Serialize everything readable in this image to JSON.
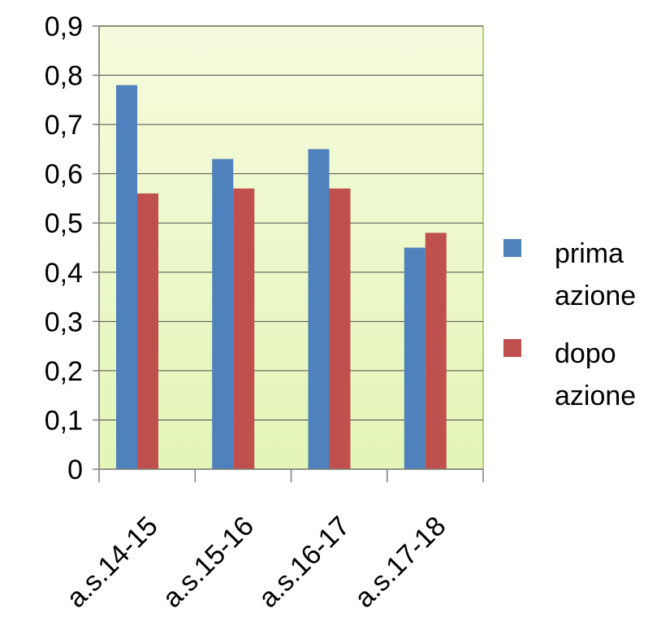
{
  "chart_data": {
    "type": "bar",
    "categories": [
      "a.s.14-15",
      "a.s.15-16",
      "a.s.16-17",
      "a.s.17-18"
    ],
    "series": [
      {
        "name": [
          "prima",
          "azione"
        ],
        "values": [
          0.78,
          0.63,
          0.65,
          0.45
        ],
        "color": "#4F81BD"
      },
      {
        "name": [
          "dopo",
          "azione"
        ],
        "values": [
          0.56,
          0.57,
          0.57,
          0.48
        ],
        "color": "#C0504D"
      }
    ],
    "ylim": [
      0,
      0.9
    ],
    "yticks": [
      "0",
      "0,1",
      "0,2",
      "0,3",
      "0,4",
      "0,5",
      "0,6",
      "0,7",
      "0,8",
      "0,9"
    ],
    "grid": true,
    "legend": "right",
    "plot_background": [
      "#F5FBDD",
      "#E4F5B8"
    ],
    "gridline_color": "#4A4A4A"
  }
}
